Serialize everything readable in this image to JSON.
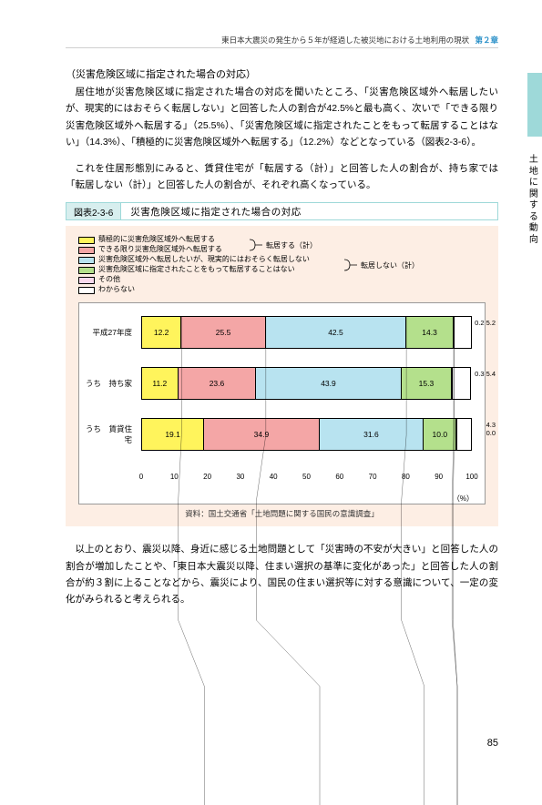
{
  "header": {
    "text": "東日本大震災の発生から５年が経過した被災地における土地利用の現状",
    "chapter": "第２章"
  },
  "sideLabel": "土地に関する動向",
  "sectionTitle": "（災害危険区域に指定された場合の対応）",
  "para1": "居住地が災害危険区域に指定された場合の対応を聞いたところ、「災害危険区域外へ転居したいが、現実的にはおそらく転居しない」と回答した人の割合が42.5%と最も高く、次いで「できる限り災害危険区域外へ転居する」（25.5%）、「災害危険区域に指定されたことをもって転居することはない」（14.3%）、「積極的に災害危険区域外へ転居する」（12.2%）などとなっている（図表2-3-6）。",
  "para2": "これを住居形態別にみると、賃貸住宅が「転居する（計）」と回答した人の割合が、持ち家では「転居しない（計）」と回答した人の割合が、それぞれ高くなっている。",
  "figure": {
    "label": "図表2-3-6",
    "title": "災害危険区域に指定された場合の対応"
  },
  "legend": {
    "items": [
      {
        "color": "#fff45c",
        "text": "積極的に災害危険区域外へ転居する"
      },
      {
        "color": "#f4a6a6",
        "text": "できる限り災害危険区域外へ転居する"
      },
      {
        "color": "#b8e3f0",
        "text": "災害危険区域外へ転居したいが、現実的にはおそらく転居しない"
      },
      {
        "color": "#b4e08c",
        "text": "災害危険区域に指定されたことをもって転居することはない"
      },
      {
        "color": "#f9d9ed",
        "text": "その他"
      },
      {
        "color": "#ffffff",
        "text": "わからない"
      }
    ],
    "group1": "転居する（計）",
    "group2": "転居しない（計）"
  },
  "chart": {
    "rows": [
      {
        "label": "平成27年度",
        "segments": [
          {
            "v": 12.2,
            "c": "#fff45c",
            "t": "12.2"
          },
          {
            "v": 25.5,
            "c": "#f4a6a6",
            "t": "25.5"
          },
          {
            "v": 42.5,
            "c": "#b8e3f0",
            "t": "42.5"
          },
          {
            "v": 14.3,
            "c": "#b4e08c",
            "t": "14.3"
          },
          {
            "v": 0.2,
            "c": "#f9d9ed",
            "t": ""
          },
          {
            "v": 5.2,
            "c": "#ffffff",
            "t": ""
          }
        ],
        "out": "0.2 5.2"
      },
      {
        "label": "うち　持ち家",
        "segments": [
          {
            "v": 11.2,
            "c": "#fff45c",
            "t": "11.2"
          },
          {
            "v": 23.6,
            "c": "#f4a6a6",
            "t": "23.6"
          },
          {
            "v": 43.9,
            "c": "#b8e3f0",
            "t": "43.9"
          },
          {
            "v": 15.3,
            "c": "#b4e08c",
            "t": "15.3"
          },
          {
            "v": 0.3,
            "c": "#f9d9ed",
            "t": ""
          },
          {
            "v": 5.4,
            "c": "#ffffff",
            "t": ""
          }
        ],
        "out": "0.3 5.4"
      },
      {
        "label": "うち　賃貸住宅",
        "segments": [
          {
            "v": 19.1,
            "c": "#fff45c",
            "t": "19.1"
          },
          {
            "v": 34.9,
            "c": "#f4a6a6",
            "t": "34.9"
          },
          {
            "v": 31.6,
            "c": "#b8e3f0",
            "t": "31.6"
          },
          {
            "v": 10.0,
            "c": "#b4e08c",
            "t": "10.0"
          },
          {
            "v": 0.0,
            "c": "#f9d9ed",
            "t": ""
          },
          {
            "v": 4.3,
            "c": "#ffffff",
            "t": ""
          }
        ],
        "out": "4.3\n0.0"
      }
    ],
    "xticks": [
      0,
      10,
      20,
      30,
      40,
      50,
      60,
      70,
      80,
      90,
      100
    ],
    "xunit": "（%）"
  },
  "source": "資料：国土交通省「土地問題に関する国民の意識調査」",
  "conclusion": "以上のとおり、震災以降、身近に感じる土地問題として「災害時の不安が大きい」と回答した人の割合が増加したことや、「東日本大震災以降、住まい選択の基準に変化があった」と回答した人の割合が約３割に上ることなどから、震災により、国民の住まい選択等に対する意識について、一定の変化がみられると考えられる。",
  "pageNumber": "85"
}
